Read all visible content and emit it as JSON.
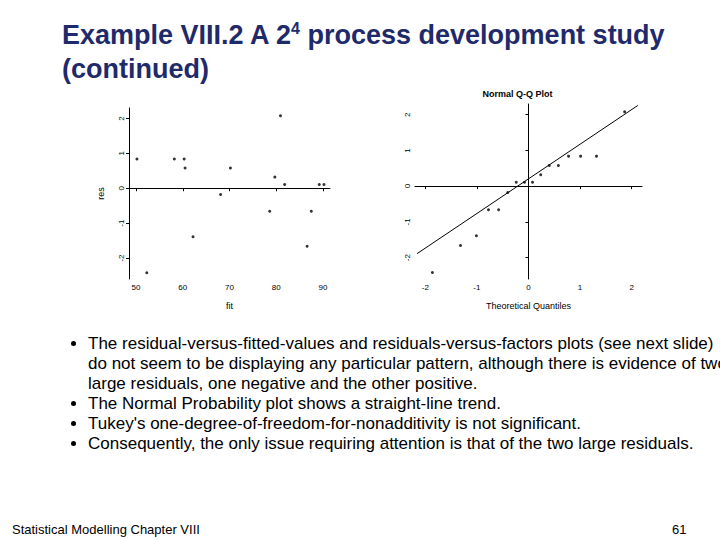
{
  "title": {
    "text": "Example VIII.2 A 2",
    "superscript": "4",
    "text_after": " process development study (continued)"
  },
  "chart_data": [
    {
      "type": "scatter",
      "x_label": "fit",
      "y_label": "res",
      "xlim": [
        48.5,
        91.5
      ],
      "ylim": [
        -2.6,
        2.3
      ],
      "xticks": [
        50,
        60,
        70,
        80,
        90
      ],
      "yticks": [
        -2,
        -1,
        0,
        1,
        2
      ],
      "grid": false,
      "series": [
        {
          "type": "scatter",
          "marker": "circle",
          "color": "#000000",
          "x": [
            50.2,
            52.3,
            58.2,
            60.3,
            60.5,
            62.2,
            68.1,
            70.2,
            78.6,
            79.7,
            80.9,
            81.8,
            86.6,
            87.5,
            89.2,
            90.2
          ],
          "values": [
            0.84,
            -2.42,
            0.84,
            0.84,
            0.58,
            -1.39,
            -0.18,
            0.58,
            -0.66,
            0.32,
            2.08,
            0.11,
            -1.66,
            -0.66,
            0.11,
            0.11
          ]
        }
      ]
    },
    {
      "type": "scatter",
      "title": "Normal Q-Q Plot",
      "x_label": "Theoretical Quantiles",
      "xlim": [
        -2.2,
        2.2
      ],
      "ylim": [
        -2.6,
        2.3
      ],
      "xticks": [
        -2,
        -1,
        0,
        1,
        2
      ],
      "yticks": [
        -2,
        -1,
        0,
        1,
        2
      ],
      "grid": false,
      "series": [
        {
          "type": "scatter",
          "marker": "circle",
          "color": "#000000",
          "x": [
            -1.863,
            -1.318,
            -1.01,
            -0.776,
            -0.579,
            -0.402,
            -0.237,
            -0.078,
            0.078,
            0.237,
            0.402,
            0.579,
            0.776,
            1.01,
            1.318,
            1.863
          ],
          "values": [
            -2.42,
            -1.66,
            -1.39,
            -0.66,
            -0.66,
            -0.18,
            0.11,
            0.11,
            0.11,
            0.32,
            0.58,
            0.58,
            0.84,
            0.84,
            0.84,
            2.08
          ]
        },
        {
          "type": "line",
          "line_style": "solid",
          "color": "#000000",
          "x": [
            -2.16,
            2.12
          ],
          "values": [
            -1.89,
            2.26
          ]
        }
      ]
    }
  ],
  "bullets": [
    "The residual-versus-fitted-values and residuals-versus-factors plots (see next slide) do not seem to be displaying any particular pattern, although there is evidence of two large residuals, one negative and the other positive.",
    "The Normal Probability plot shows a straight-line trend.",
    "Tukey's one-degree-of-freedom-for-nonadditivity is not significant.",
    "Consequently, the only issue requiring attention is that of the two large residuals."
  ],
  "footer": {
    "left": "Statistical Modelling   Chapter VIII",
    "right": "61"
  }
}
